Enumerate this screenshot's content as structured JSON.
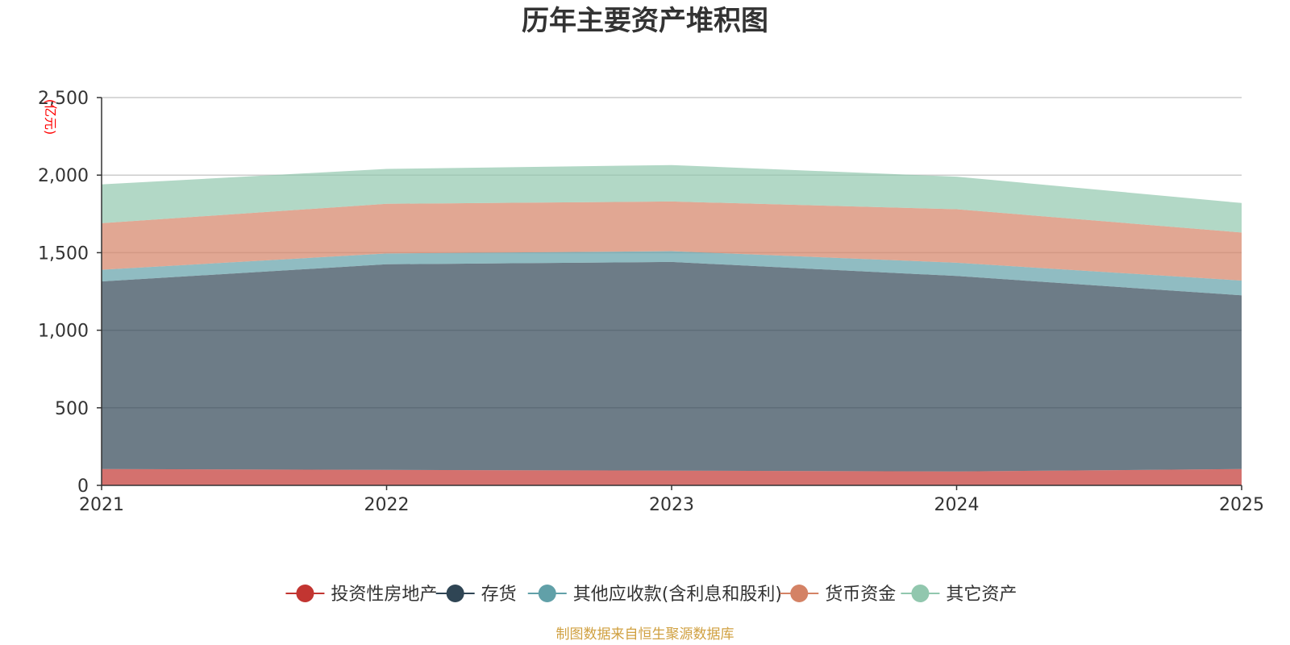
{
  "source_note": "制图数据来自恒生聚源数据库",
  "chart_data": {
    "type": "area",
    "stacked": true,
    "title": "历年主要资产堆积图",
    "unit": "(亿元)",
    "x": [
      "2021",
      "2022",
      "2023",
      "2024",
      "2025"
    ],
    "ylim": [
      0,
      2500
    ],
    "y_ticks": [
      0,
      500,
      1000,
      1500,
      2000,
      2500
    ],
    "y_tick_labels": [
      "0",
      "500",
      "1,000",
      "1,500",
      "2,000",
      "2,500"
    ],
    "grid": true,
    "legend_position": "bottom",
    "series": [
      {
        "name": "投资性房地产",
        "color": "#c23531",
        "values": [
          105,
          100,
          95,
          90,
          105
        ]
      },
      {
        "name": "存货",
        "color": "#2f4554",
        "values": [
          1210,
          1325,
          1345,
          1260,
          1120
        ]
      },
      {
        "name": "其他应收款(含利息和股利)",
        "color": "#61a0a8",
        "values": [
          75,
          70,
          70,
          85,
          95
        ]
      },
      {
        "name": "货币资金",
        "color": "#d48265",
        "values": [
          300,
          320,
          320,
          345,
          310
        ]
      },
      {
        "name": "其它资产",
        "color": "#91c7ae",
        "values": [
          250,
          225,
          235,
          210,
          190
        ]
      }
    ]
  }
}
